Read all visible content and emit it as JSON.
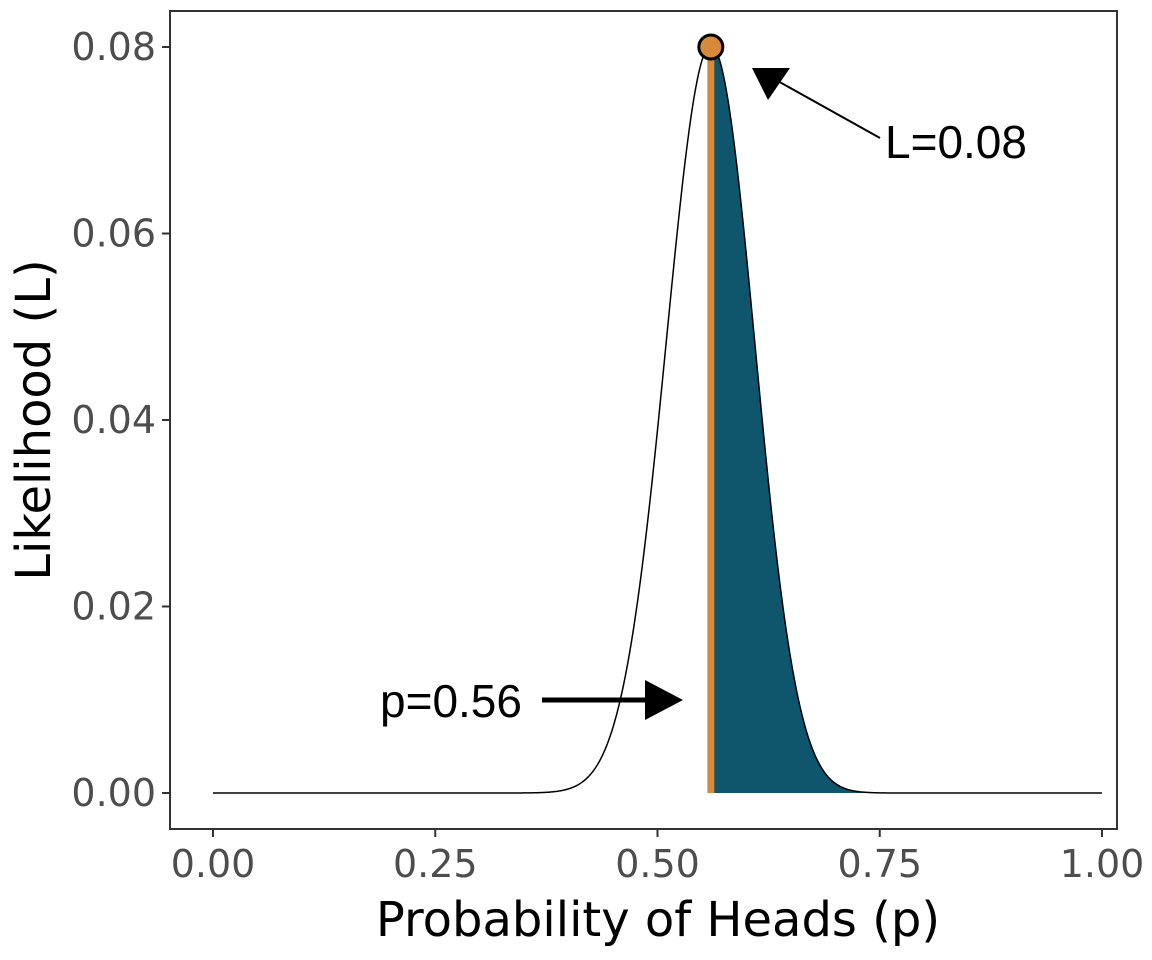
{
  "chart_data": {
    "type": "area",
    "title": "",
    "xlabel": "Probability of Heads (p)",
    "ylabel": "Likelihood (L)",
    "xlim": [
      0,
      1
    ],
    "ylim": [
      0,
      0.08
    ],
    "x_ticks": [
      0,
      0.25,
      0.5,
      0.75,
      1
    ],
    "x_tick_labels": [
      "0.00",
      "0.25",
      "0.50",
      "0.75",
      "1.00"
    ],
    "y_ticks": [
      0,
      0.02,
      0.04,
      0.06,
      0.08
    ],
    "y_tick_labels": [
      "0.00",
      "0.02",
      "0.04",
      "0.06",
      "0.08"
    ],
    "grid": false,
    "legend": "none",
    "curve": {
      "description_free": true,
      "trials": 100,
      "successes": 56,
      "x": [
        0.0,
        0.3,
        0.38,
        0.4,
        0.42,
        0.44,
        0.46,
        0.48,
        0.5,
        0.52,
        0.54,
        0.56,
        0.58,
        0.6,
        0.62,
        0.64,
        0.66,
        0.68,
        0.7,
        0.72,
        0.75,
        1.0
      ],
      "y": [
        0.0,
        0.0,
        0.0002,
        0.0008,
        0.0025,
        0.0068,
        0.0153,
        0.029,
        0.0466,
        0.0631,
        0.0757,
        0.0798,
        0.0741,
        0.0598,
        0.042,
        0.0251,
        0.0127,
        0.0054,
        0.0018,
        0.0005,
        0.0001,
        0.0
      ]
    },
    "shaded_region": {
      "from_x": 0.56,
      "to_x": 1.0,
      "color": "#0f566d"
    },
    "mle_line": {
      "x": 0.56,
      "color": "#d68a3a"
    },
    "peak_point": {
      "x": 0.56,
      "y": 0.08,
      "color": "#d68a3a"
    },
    "annotations": [
      {
        "text": "L=0.08",
        "points_to": "peak_point"
      },
      {
        "text": "p=0.56",
        "points_to": "mle_line"
      }
    ]
  }
}
